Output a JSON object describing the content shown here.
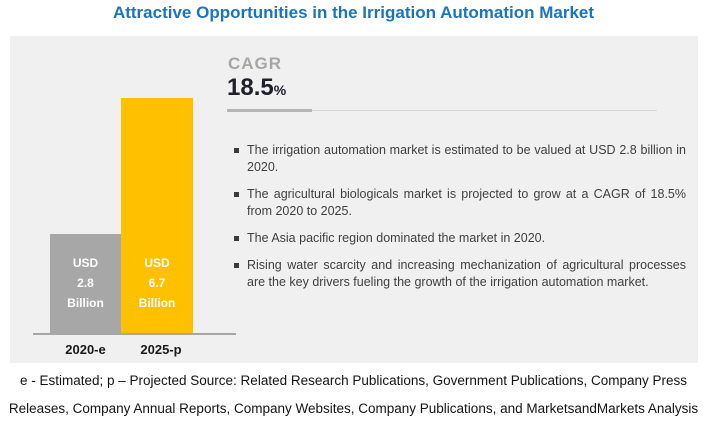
{
  "title": "Attractive Opportunities in the Irrigation Automation Market",
  "cagr": {
    "label": "CAGR",
    "value": "18.5",
    "percent_sign": "%"
  },
  "chart": {
    "bars": [
      {
        "label_lines": "USD\n2.8\nBillion",
        "axis_label": "2020-e",
        "color": "#A7A7A7"
      },
      {
        "label_lines": "USD\n6.7\nBillion",
        "axis_label": "2025-p",
        "color": "#FFC000"
      }
    ]
  },
  "bullets": [
    "The irrigation automation market is estimated to be valued at USD 2.8 billion in 2020.",
    "The agricultural biologicals market is projected to grow at a CAGR of 18.5% from 2020 to 2025.",
    "The Asia pacific region dominated the market in 2020.",
    "Rising water scarcity and increasing mechanization of agricultural processes are the key drivers fueling the growth of the irrigation automation market."
  ],
  "footer": {
    "line1": "e - Estimated; p – Projected Source: Related Research Publications, Government Publications, Company Press",
    "line2": "Releases, Company Annual Reports, Company Websites, Company Publications, and MarketsandMarkets Analysis"
  },
  "colors": {
    "title_blue": "#1B75BC",
    "panel_background": "#F0F0F0",
    "bar_gray": "#A7A7A7",
    "bar_gold": "#FFC000",
    "cagr_label_gray": "#A6A6A6",
    "cagr_value_dark": "#20202A",
    "bullet_text": "#3F3F3F",
    "bar_value_text": "#FFFFFF"
  },
  "chart_data": {
    "type": "bar",
    "categories": [
      "2020-e",
      "2025-p"
    ],
    "values": [
      2.8,
      6.7
    ],
    "unit": "USD Billion",
    "bar_value_labels": [
      "USD 2.8 Billion",
      "USD 6.7 Billion"
    ],
    "bar_colors": [
      "#A7A7A7",
      "#FFC000"
    ],
    "title": "Attractive Opportunities in the Irrigation Automation Market",
    "cagr_percent": 18.5,
    "cagr_period": "2020 to 2025",
    "legend": "none",
    "grid": false,
    "notes": [
      "e - Estimated",
      "p - Projected"
    ]
  }
}
